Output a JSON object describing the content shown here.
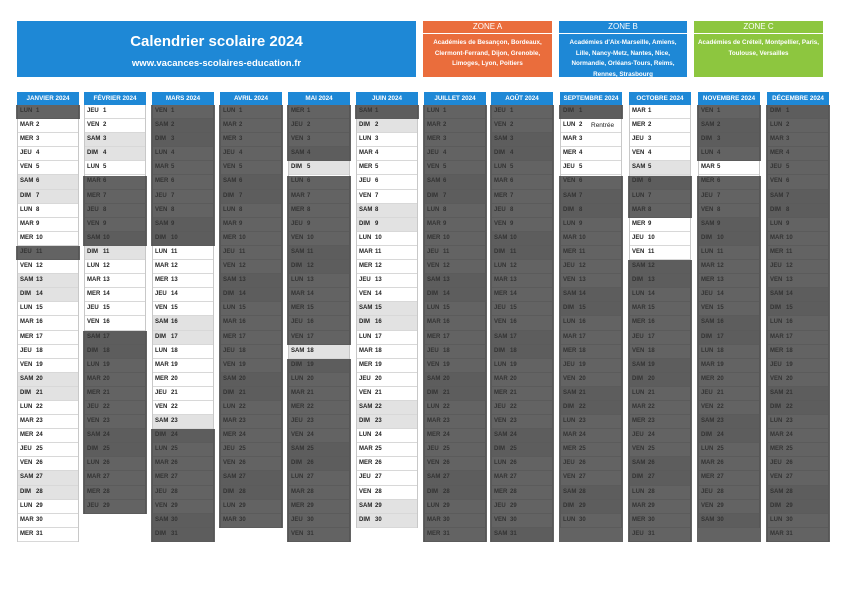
{
  "header": {
    "title": "Calendrier scolaire 2024",
    "url": "www.vacances-scolaires-education.fr"
  },
  "zones": [
    {
      "id": "A",
      "label": "ZONE A",
      "color": "#ea6d3c",
      "text": "Académies de Besançon, Bordeaux, Clermont-Ferrand, Dijon, Grenoble, Limoges, Lyon, Poitiers"
    },
    {
      "id": "B",
      "label": "ZONE B",
      "color": "#1e88d6",
      "text": "Académies d'Aix-Marseille, Amiens, Lille, Nancy-Metz, Nantes, Nice, Normandie, Orléans-Tours, Reims, Rennes, Strasbourg"
    },
    {
      "id": "C",
      "label": "ZONE C",
      "color": "#8dc63f",
      "text": "Académies de Créteil, Montpellier, Paris, Toulouse, Versailles"
    }
  ],
  "colors": {
    "header_blue": "#1e88d6",
    "zone_a": "#ea6d3c",
    "zone_b": "#1e88d6",
    "zone_c": "#8dc63f",
    "weekend": "#e2e2e2",
    "holiday_overlay": "#3a3a3a"
  },
  "day_abbr": [
    "LUN",
    "MAR",
    "MER",
    "JEU",
    "VEN",
    "SAM",
    "DIM"
  ],
  "months": [
    {
      "name": "JANVIER 2024",
      "days": 31,
      "start": 0
    },
    {
      "name": "FÉVRIER 2024",
      "days": 29,
      "start": 3
    },
    {
      "name": "MARS 2024",
      "days": 31,
      "start": 4
    },
    {
      "name": "AVRIL 2024",
      "days": 30,
      "start": 0
    },
    {
      "name": "MAI 2024",
      "days": 31,
      "start": 2
    },
    {
      "name": "JUIN 2024",
      "days": 30,
      "start": 5
    },
    {
      "name": "JUILLET 2024",
      "days": 31,
      "start": 0
    },
    {
      "name": "AOÛT 2024",
      "days": 31,
      "start": 3
    },
    {
      "name": "SEPTEMBRE 2024",
      "days": 30,
      "start": 6,
      "notes": {
        "2": "Rentrée"
      }
    },
    {
      "name": "OCTOBRE 2024",
      "days": 31,
      "start": 1
    },
    {
      "name": "NOVEMBRE 2024",
      "days": 30,
      "start": 4
    },
    {
      "name": "DÉCEMBRE 2024",
      "days": 31,
      "start": 6
    }
  ],
  "holidays": [
    {
      "month": 0,
      "from": 1,
      "to": 1
    },
    {
      "month": 0,
      "from": 11,
      "to": 11
    },
    {
      "month": 1,
      "from": 6,
      "to": 10
    },
    {
      "month": 1,
      "from": 17,
      "to": 29
    },
    {
      "month": 2,
      "from": 1,
      "to": 10
    },
    {
      "month": 2,
      "from": 24,
      "to": 31
    },
    {
      "month": 3,
      "from": 1,
      "to": 30
    },
    {
      "month": 4,
      "from": 1,
      "to": 4
    },
    {
      "month": 4,
      "from": 6,
      "to": 12
    },
    {
      "month": 4,
      "from": 13,
      "to": 17
    },
    {
      "month": 4,
      "from": 19,
      "to": 31
    },
    {
      "month": 5,
      "from": 1,
      "to": 1
    },
    {
      "month": 6,
      "from": 1,
      "to": 31
    },
    {
      "month": 7,
      "from": 1,
      "to": 31
    },
    {
      "month": 8,
      "from": 1,
      "to": 1
    },
    {
      "month": 8,
      "from": 6,
      "to": 31
    },
    {
      "month": 9,
      "from": 6,
      "to": 8
    },
    {
      "month": 9,
      "from": 12,
      "to": 31
    },
    {
      "month": 10,
      "from": 1,
      "to": 4
    },
    {
      "month": 10,
      "from": 6,
      "to": 31
    },
    {
      "month": 11,
      "from": 1,
      "to": 31
    }
  ]
}
